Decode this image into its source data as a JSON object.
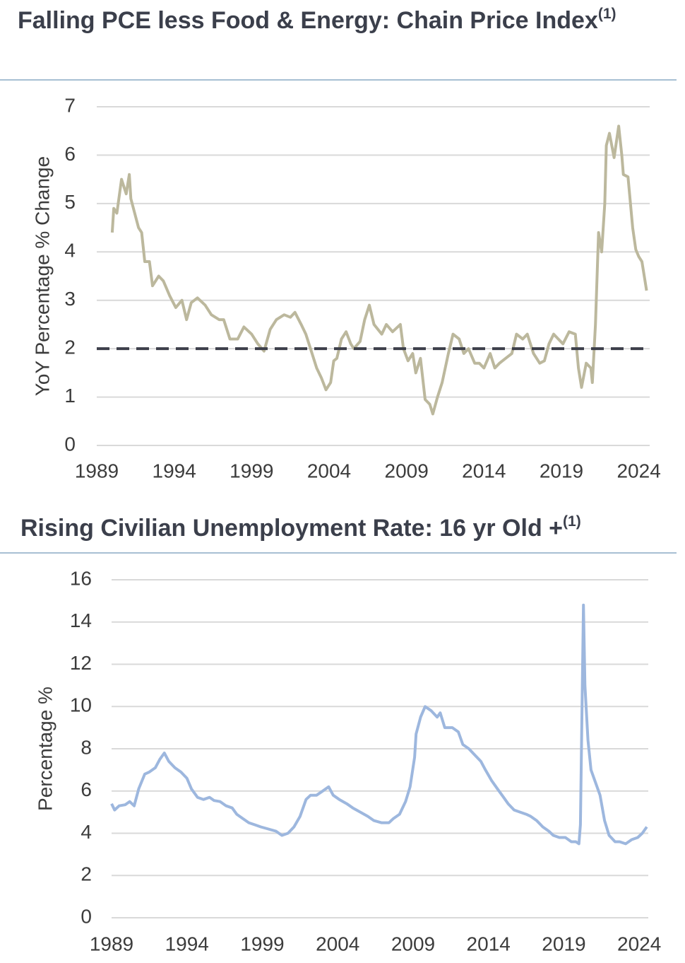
{
  "chart_data": [
    {
      "type": "line",
      "title": "Falling PCE less Food & Energy: Chain Price Index",
      "title_superscript": "(1)",
      "y_label": "YoY Percentage % Change",
      "xlim": [
        1989,
        2024.7
      ],
      "xticks": [
        1989,
        1994,
        1999,
        2004,
        2009,
        2014,
        2019,
        2024
      ],
      "ylim": [
        0,
        7
      ],
      "yticks": [
        0,
        1,
        2,
        3,
        4,
        5,
        6,
        7
      ],
      "grid": true,
      "reference_line": {
        "value": 2,
        "color": "#3d3f4a",
        "style": "dashed"
      },
      "x": [
        1990.0,
        1990.1,
        1990.3,
        1990.6,
        1990.9,
        1991.1,
        1991.2,
        1991.7,
        1991.9,
        1992.1,
        1992.4,
        1992.6,
        1993.0,
        1993.3,
        1993.7,
        1994.1,
        1994.5,
        1994.8,
        1995.1,
        1995.5,
        1996.0,
        1996.4,
        1996.9,
        1997.2,
        1997.6,
        1998.1,
        1998.5,
        1999.0,
        1999.4,
        1999.8,
        2000.2,
        2000.6,
        2001.1,
        2001.5,
        2001.8,
        2002.2,
        2002.5,
        2002.8,
        2003.2,
        2003.5,
        2003.8,
        2004.1,
        2004.3,
        2004.5,
        2004.8,
        2005.1,
        2005.4,
        2005.6,
        2006.0,
        2006.3,
        2006.6,
        2006.9,
        2007.4,
        2007.7,
        2008.1,
        2008.6,
        2008.8,
        2009.1,
        2009.4,
        2009.6,
        2009.9,
        2010.2,
        2010.5,
        2010.7,
        2011.0,
        2011.3,
        2011.7,
        2012.0,
        2012.4,
        2012.7,
        2013.0,
        2013.4,
        2013.7,
        2014.0,
        2014.4,
        2014.7,
        2015.0,
        2015.4,
        2015.8,
        2016.1,
        2016.5,
        2016.8,
        2017.2,
        2017.6,
        2017.9,
        2018.2,
        2018.5,
        2018.8,
        2019.1,
        2019.5,
        2019.9,
        2020.1,
        2020.3,
        2020.6,
        2020.9,
        2021.0,
        2021.2,
        2021.4,
        2021.6,
        2021.8,
        2021.9,
        2022.1,
        2022.4,
        2022.7,
        2022.9,
        2023.0,
        2023.3,
        2023.6,
        2023.8,
        2024.0,
        2024.2,
        2024.5
      ],
      "series": [
        {
          "color": "#bcb89d",
          "values": [
            4.4,
            4.9,
            4.8,
            5.5,
            5.2,
            5.6,
            5.1,
            4.5,
            4.4,
            3.8,
            3.8,
            3.3,
            3.5,
            3.4,
            3.1,
            2.85,
            3.0,
            2.6,
            2.95,
            3.05,
            2.9,
            2.7,
            2.6,
            2.6,
            2.2,
            2.2,
            2.45,
            2.3,
            2.1,
            1.95,
            2.4,
            2.6,
            2.7,
            2.65,
            2.75,
            2.5,
            2.3,
            2.0,
            1.6,
            1.4,
            1.15,
            1.3,
            1.75,
            1.8,
            2.2,
            2.35,
            2.1,
            2.0,
            2.15,
            2.6,
            2.9,
            2.5,
            2.3,
            2.5,
            2.35,
            2.5,
            2.0,
            1.75,
            1.9,
            1.5,
            1.8,
            0.95,
            0.85,
            0.65,
            1.0,
            1.3,
            1.9,
            2.3,
            2.2,
            1.9,
            2.0,
            1.7,
            1.7,
            1.6,
            1.9,
            1.6,
            1.7,
            1.8,
            1.9,
            2.3,
            2.2,
            2.3,
            1.9,
            1.7,
            1.75,
            2.1,
            2.3,
            2.2,
            2.1,
            2.35,
            2.3,
            1.6,
            1.2,
            1.7,
            1.6,
            1.3,
            2.5,
            4.4,
            4.0,
            5.0,
            6.2,
            6.45,
            5.95,
            6.6,
            6.0,
            5.6,
            5.55,
            4.5,
            4.05,
            3.9,
            3.8,
            3.2
          ]
        }
      ]
    },
    {
      "type": "line",
      "title": "Rising Civilian Unemployment Rate: 16 yr Old +",
      "title_superscript": "(1)",
      "y_label": "Percentage %",
      "xlim": [
        1989,
        2024.6
      ],
      "xticks": [
        1989,
        1994,
        1999,
        2004,
        2009,
        2014,
        2019,
        2024
      ],
      "ylim": [
        0,
        16
      ],
      "yticks": [
        0,
        2,
        4,
        6,
        8,
        10,
        12,
        14,
        16
      ],
      "grid": true,
      "x": [
        1989.0,
        1989.2,
        1989.5,
        1989.9,
        1990.2,
        1990.5,
        1990.8,
        1991.2,
        1991.5,
        1991.9,
        1992.2,
        1992.5,
        1992.8,
        1993.2,
        1993.6,
        1994.0,
        1994.3,
        1994.7,
        1995.1,
        1995.5,
        1995.8,
        1996.2,
        1996.6,
        1997.0,
        1997.3,
        1997.7,
        1998.1,
        1998.5,
        1998.9,
        1999.4,
        1999.9,
        2000.3,
        2000.7,
        2001.1,
        2001.5,
        2001.9,
        2002.2,
        2002.6,
        2003.0,
        2003.4,
        2003.7,
        2004.1,
        2004.6,
        2005.0,
        2005.5,
        2006.0,
        2006.4,
        2006.9,
        2007.4,
        2007.7,
        2008.1,
        2008.5,
        2008.8,
        2009.1,
        2009.2,
        2009.5,
        2009.8,
        2010.2,
        2010.6,
        2010.8,
        2011.1,
        2011.6,
        2012.0,
        2012.3,
        2012.7,
        2013.1,
        2013.5,
        2013.8,
        2014.2,
        2014.6,
        2015.0,
        2015.3,
        2015.7,
        2016.1,
        2016.5,
        2016.8,
        2017.2,
        2017.6,
        2018.0,
        2018.3,
        2018.7,
        2019.1,
        2019.5,
        2019.8,
        2020.0,
        2020.1,
        2020.3,
        2020.4,
        2020.6,
        2020.8,
        2021.1,
        2021.4,
        2021.7,
        2022.0,
        2022.4,
        2022.7,
        2023.1,
        2023.5,
        2023.9,
        2024.2,
        2024.5
      ],
      "series": [
        {
          "color": "#9db7de",
          "values": [
            5.4,
            5.1,
            5.3,
            5.35,
            5.5,
            5.3,
            6.1,
            6.8,
            6.9,
            7.1,
            7.5,
            7.8,
            7.4,
            7.1,
            6.9,
            6.6,
            6.1,
            5.7,
            5.6,
            5.7,
            5.55,
            5.5,
            5.3,
            5.2,
            4.9,
            4.7,
            4.5,
            4.4,
            4.3,
            4.2,
            4.1,
            3.9,
            4.0,
            4.3,
            4.8,
            5.6,
            5.8,
            5.8,
            6.0,
            6.2,
            5.8,
            5.6,
            5.4,
            5.2,
            5.0,
            4.8,
            4.6,
            4.5,
            4.5,
            4.7,
            4.9,
            5.5,
            6.2,
            7.6,
            8.7,
            9.5,
            10.0,
            9.8,
            9.5,
            9.7,
            9.0,
            9.0,
            8.8,
            8.2,
            8.0,
            7.7,
            7.4,
            7.0,
            6.5,
            6.1,
            5.7,
            5.4,
            5.1,
            5.0,
            4.9,
            4.8,
            4.6,
            4.3,
            4.1,
            3.9,
            3.8,
            3.8,
            3.6,
            3.6,
            3.5,
            4.4,
            14.8,
            11.0,
            8.4,
            7.0,
            6.4,
            5.8,
            4.6,
            3.9,
            3.6,
            3.6,
            3.5,
            3.7,
            3.8,
            4.0,
            4.3
          ]
        }
      ]
    }
  ]
}
